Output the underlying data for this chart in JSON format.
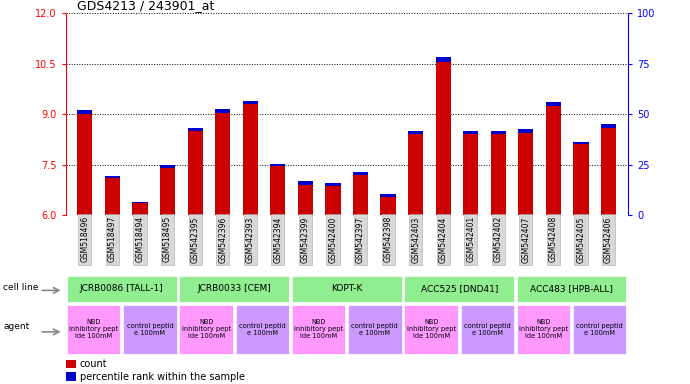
{
  "title": "GDS4213 / 243901_at",
  "samples": [
    "GSM518496",
    "GSM518497",
    "GSM518494",
    "GSM518495",
    "GSM542395",
    "GSM542396",
    "GSM542393",
    "GSM542394",
    "GSM542399",
    "GSM542400",
    "GSM542397",
    "GSM542398",
    "GSM542403",
    "GSM542404",
    "GSM542401",
    "GSM542402",
    "GSM542407",
    "GSM542408",
    "GSM542405",
    "GSM542406"
  ],
  "red_values": [
    9.0,
    7.1,
    6.35,
    7.4,
    8.5,
    9.05,
    9.3,
    7.45,
    6.9,
    6.85,
    7.2,
    6.55,
    8.4,
    10.55,
    8.4,
    8.4,
    8.45,
    9.25,
    8.1,
    8.6
  ],
  "blue_values": [
    0.12,
    0.05,
    0.04,
    0.1,
    0.1,
    0.12,
    0.1,
    0.08,
    0.1,
    0.1,
    0.08,
    0.07,
    0.1,
    0.15,
    0.1,
    0.1,
    0.1,
    0.12,
    0.08,
    0.12
  ],
  "ylim": [
    6,
    12
  ],
  "yticks_left": [
    6,
    7.5,
    9,
    10.5,
    12
  ],
  "yticks_right": [
    0,
    25,
    50,
    75,
    100
  ],
  "cell_lines": [
    {
      "label": "JCRB0086 [TALL-1]",
      "start": 0,
      "end": 4
    },
    {
      "label": "JCRB0033 [CEM]",
      "start": 4,
      "end": 8
    },
    {
      "label": "KOPT-K",
      "start": 8,
      "end": 12
    },
    {
      "label": "ACC525 [DND41]",
      "start": 12,
      "end": 16
    },
    {
      "label": "ACC483 [HPB-ALL]",
      "start": 16,
      "end": 20
    }
  ],
  "agents": [
    {
      "label": "NBD\ninhibitory pept\nide 100mM",
      "start": 0,
      "end": 2,
      "color": "#ff99ff"
    },
    {
      "label": "control peptid\ne 100mM",
      "start": 2,
      "end": 4,
      "color": "#cc99ff"
    },
    {
      "label": "NBD\ninhibitory pept\nide 100mM",
      "start": 4,
      "end": 6,
      "color": "#ff99ff"
    },
    {
      "label": "control peptid\ne 100mM",
      "start": 6,
      "end": 8,
      "color": "#cc99ff"
    },
    {
      "label": "NBD\ninhibitory pept\nide 100mM",
      "start": 8,
      "end": 10,
      "color": "#ff99ff"
    },
    {
      "label": "control peptid\ne 100mM",
      "start": 10,
      "end": 12,
      "color": "#cc99ff"
    },
    {
      "label": "NBD\ninhibitory pept\nide 100mM",
      "start": 12,
      "end": 14,
      "color": "#ff99ff"
    },
    {
      "label": "control peptid\ne 100mM",
      "start": 14,
      "end": 16,
      "color": "#cc99ff"
    },
    {
      "label": "NBD\ninhibitory pept\nide 100mM",
      "start": 16,
      "end": 18,
      "color": "#ff99ff"
    },
    {
      "label": "control peptid\ne 100mM",
      "start": 18,
      "end": 20,
      "color": "#cc99ff"
    }
  ],
  "bar_color_red": "#cc0000",
  "bar_color_blue": "#0000cc",
  "bar_width": 0.55,
  "background_color": "#ffffff",
  "plot_bg_color": "#ffffff",
  "cell_line_color": "#90ee90",
  "cell_line_bg": "#d0d0d0",
  "agent_bg": "#d0d0d0"
}
